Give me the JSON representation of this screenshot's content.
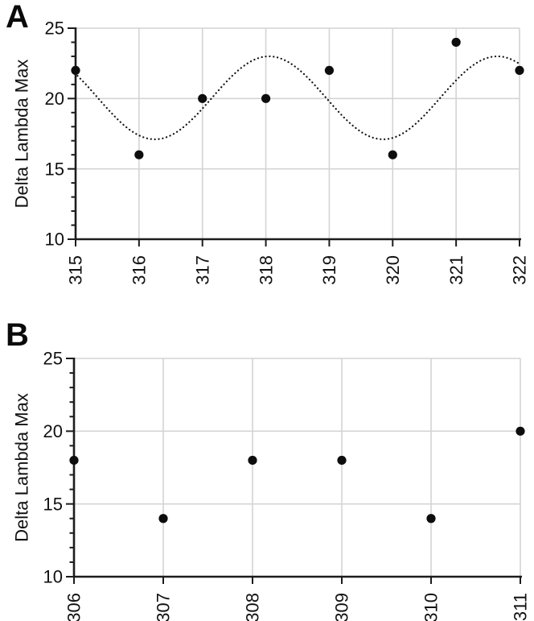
{
  "figure": {
    "background": "#ffffff",
    "colors": {
      "point": "#0d0d0d",
      "axis": "#1c1c1c",
      "grid": "#d4d4d4",
      "text": "#111111",
      "trendline": "#111111"
    }
  },
  "chart_data": [
    {
      "type": "scatter",
      "panel_label": "A",
      "title": "",
      "xlabel": "",
      "ylabel": "Delta Lambda Max",
      "x": [
        315,
        316,
        317,
        318,
        319,
        320,
        321,
        322
      ],
      "y": [
        22,
        16,
        20,
        20,
        22,
        16,
        24,
        22
      ],
      "xlim": [
        315,
        322
      ],
      "ylim": [
        10,
        25
      ],
      "x_ticks": [
        315,
        316,
        317,
        318,
        319,
        320,
        321,
        322
      ],
      "y_major_ticks": [
        10,
        15,
        20,
        25
      ],
      "y_minor_step": 1,
      "grid": true,
      "legend": null,
      "marker": "filled-circle",
      "trendline": {
        "shape": "cosine",
        "style": "dotted",
        "mean": 20.05,
        "amplitude": 2.95,
        "period": 3.6,
        "x_peak": 318.05,
        "x_start": 315.03,
        "x_end": 322,
        "y_min": 17.1,
        "y_max": 23.0
      }
    },
    {
      "type": "scatter",
      "panel_label": "B",
      "title": "",
      "xlabel": "",
      "ylabel": "Delta Lambda Max",
      "x": [
        306,
        307,
        308,
        309,
        310,
        311
      ],
      "y": [
        18,
        14,
        18,
        18,
        14,
        20
      ],
      "xlim": [
        306,
        311
      ],
      "ylim": [
        10,
        25
      ],
      "x_ticks": [
        306,
        307,
        308,
        309,
        310,
        311
      ],
      "y_major_ticks": [
        10,
        15,
        20,
        25
      ],
      "y_minor_step": 1,
      "grid": true,
      "legend": null,
      "marker": "filled-circle",
      "trendline": null
    }
  ]
}
